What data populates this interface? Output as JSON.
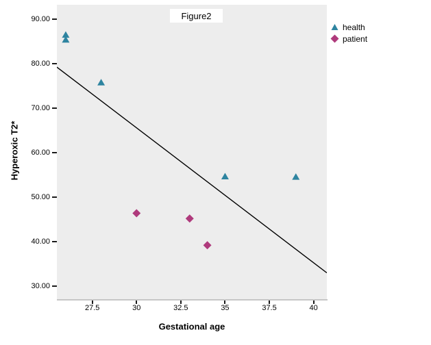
{
  "figure_title": "Figure2",
  "chart_data": {
    "type": "scatter",
    "title": "Figure2",
    "xlabel": "Gestational age",
    "ylabel": "Hyperoxic T2*",
    "xlim": [
      25.5,
      40.75
    ],
    "ylim": [
      27.1,
      93.2
    ],
    "grid": false,
    "plot_background": "#EDEDED",
    "axis_line_color": "#C6C6C6",
    "fit_line": {
      "x1": 25.5,
      "y1": 79.2,
      "x2": 40.75,
      "y2": 33.0,
      "color": "#000000"
    },
    "x_ticks": [
      {
        "value": 27.5,
        "label": "27.5"
      },
      {
        "value": 30,
        "label": "30"
      },
      {
        "value": 32.5,
        "label": "32.5"
      },
      {
        "value": 35,
        "label": "35"
      },
      {
        "value": 37.5,
        "label": "37.5"
      },
      {
        "value": 40,
        "label": "40"
      }
    ],
    "y_ticks": [
      {
        "value": 90,
        "label": "90.00"
      },
      {
        "value": 80,
        "label": "80.00"
      },
      {
        "value": 70,
        "label": "70.00"
      },
      {
        "value": 60,
        "label": "60.00"
      },
      {
        "value": 50,
        "label": "50.00"
      },
      {
        "value": 40,
        "label": "40.00"
      },
      {
        "value": 30,
        "label": "30.00"
      }
    ],
    "legend": {
      "position": "top-right",
      "entries": [
        {
          "name": "health",
          "marker": "triangle",
          "color": "#2E84A0"
        },
        {
          "name": "patient",
          "marker": "diamond",
          "color": "#AF3A7C"
        }
      ]
    },
    "series": [
      {
        "name": "health",
        "marker": "triangle",
        "color": "#2E84A0",
        "points": [
          [
            26,
            86.5
          ],
          [
            26,
            85.4
          ],
          [
            28,
            75.8
          ],
          [
            35,
            54.7
          ],
          [
            39,
            54.6
          ]
        ]
      },
      {
        "name": "patient",
        "marker": "diamond",
        "color": "#AF3A7C",
        "points": [
          [
            30,
            46.4
          ],
          [
            33,
            45.2
          ],
          [
            34,
            39.2
          ]
        ]
      }
    ]
  }
}
